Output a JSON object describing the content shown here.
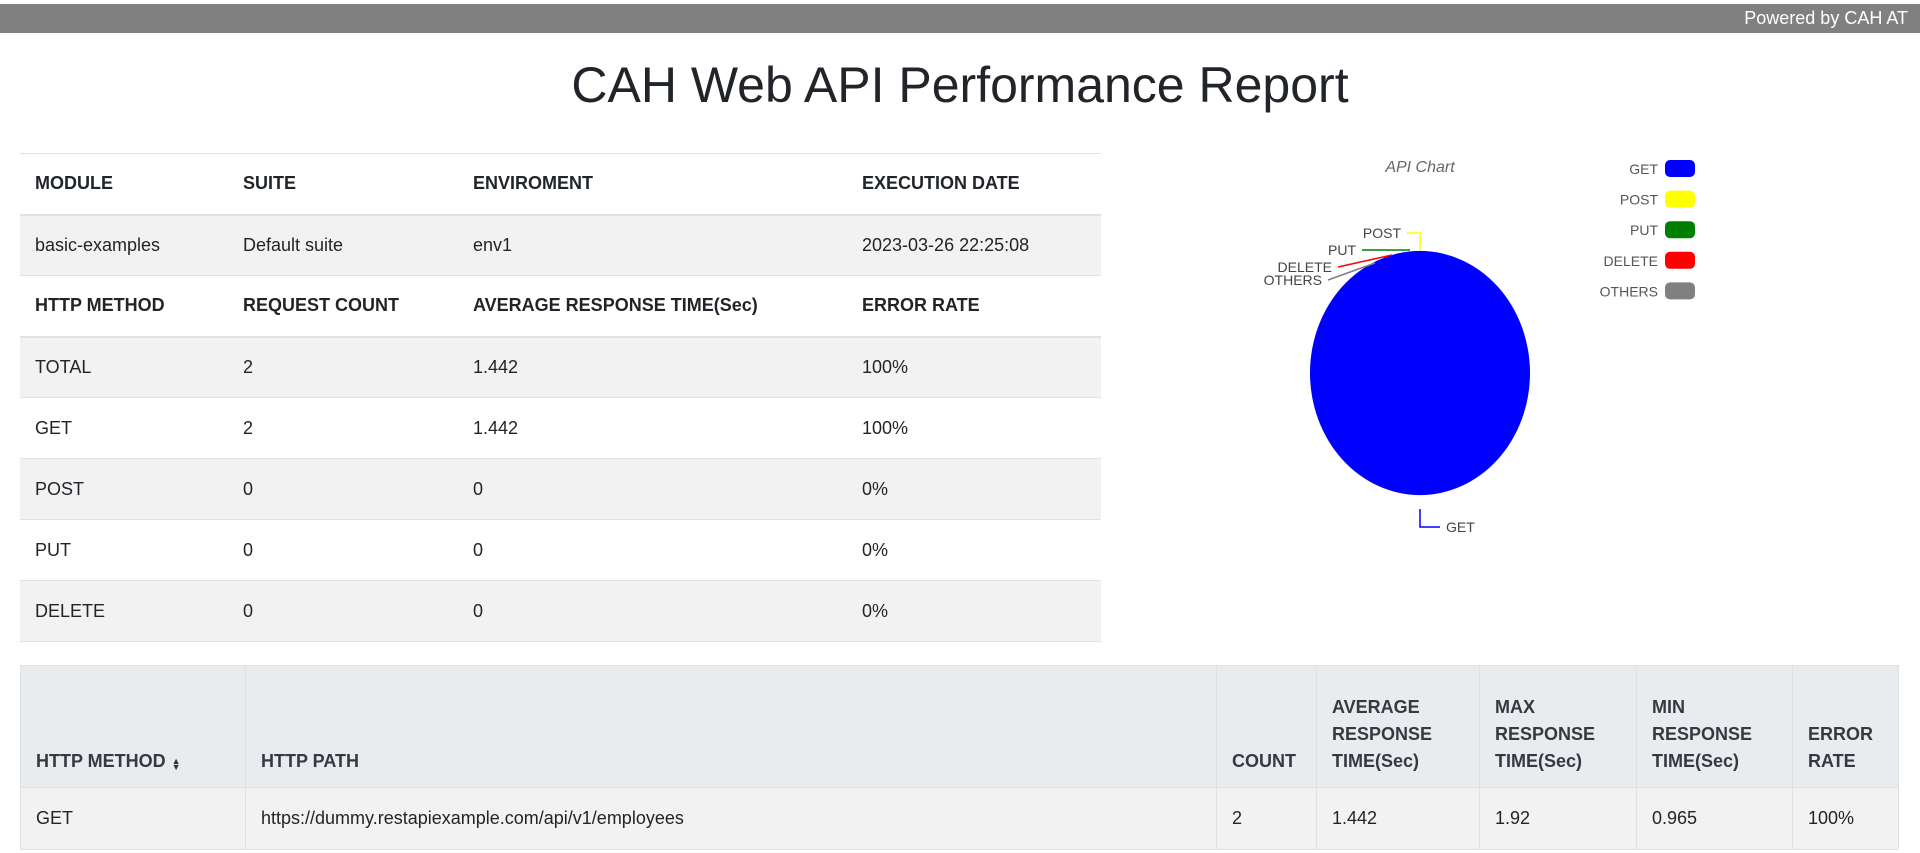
{
  "topbar": {
    "powered_by": "Powered by CAH AT"
  },
  "title": "CAH Web API Performance Report",
  "summary": {
    "info_headers": [
      "MODULE",
      "SUITE",
      "ENVIROMENT",
      "EXECUTION DATE"
    ],
    "info_values": [
      "basic-examples",
      "Default suite",
      "env1",
      "2023-03-26 22:25:08"
    ],
    "method_headers": [
      "HTTP METHOD",
      "REQUEST COUNT",
      "AVERAGE RESPONSE TIME(Sec)",
      "ERROR RATE"
    ],
    "rows": [
      [
        "TOTAL",
        "2",
        "1.442",
        "100%"
      ],
      [
        "GET",
        "2",
        "1.442",
        "100%"
      ],
      [
        "POST",
        "0",
        "0",
        "0%"
      ],
      [
        "PUT",
        "0",
        "0",
        "0%"
      ],
      [
        "DELETE",
        "0",
        "0",
        "0%"
      ]
    ]
  },
  "chart_data": {
    "type": "pie",
    "title": "API Chart",
    "legend_position": "right",
    "categories": [
      "GET",
      "POST",
      "PUT",
      "DELETE",
      "OTHERS"
    ],
    "values": [
      2,
      0,
      0,
      0,
      0
    ],
    "colors": [
      "#0000ff",
      "#ffff00",
      "#008000",
      "#ff0000",
      "#808080"
    ]
  },
  "detail": {
    "headers": [
      "HTTP METHOD",
      "HTTP PATH",
      "COUNT",
      "AVERAGE RESPONSE TIME(Sec)",
      "MAX RESPONSE TIME(Sec)",
      "MIN RESPONSE TIME(Sec)",
      "ERROR RATE"
    ],
    "sort_icon": "sort-icon",
    "rows": [
      [
        "GET",
        "https://dummy.restapiexample.com/api/v1/employees",
        "2",
        "1.442",
        "1.92",
        "0.965",
        "100%"
      ]
    ]
  }
}
